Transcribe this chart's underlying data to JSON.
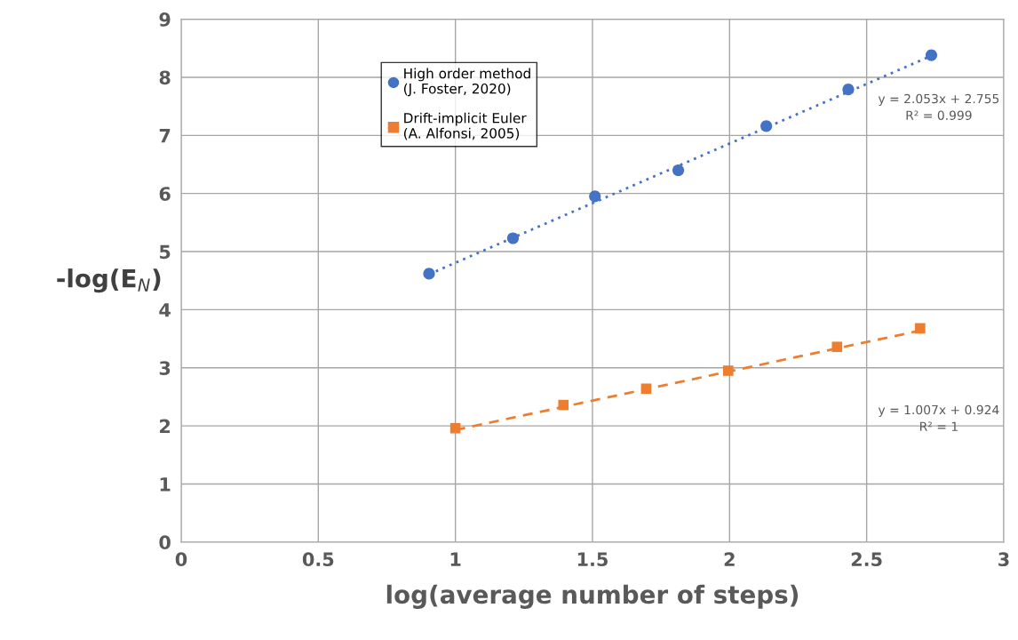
{
  "chart_data": {
    "type": "scatter",
    "xlabel": "log(average number of steps)",
    "ylabel": "-log(E$_{N}$)",
    "xlim": [
      0,
      3
    ],
    "xticks": [
      0,
      0.5,
      1,
      1.5,
      2,
      2.5,
      3
    ],
    "ylim": [
      0,
      9
    ],
    "yticks": [
      0,
      1,
      2,
      3,
      4,
      5,
      6,
      7,
      8,
      9
    ],
    "grid": true,
    "legend": "top left",
    "series": [
      {
        "name": "High order method\n(J. Foster, 2020)",
        "color": "#4472c4",
        "marker": "circle",
        "x": [
          0.904,
          1.21,
          1.509,
          1.813,
          2.134,
          2.433,
          2.736
        ],
        "values": [
          4.62,
          5.23,
          5.95,
          6.4,
          7.16,
          7.79,
          8.38
        ]
      },
      {
        "name": "Drift-implicit Euler\n(A. Alfonsi, 2005)",
        "color": "#ed7d31",
        "marker": "square",
        "x": [
          1.0,
          1.394,
          1.696,
          1.995,
          2.392,
          2.695
        ],
        "values": [
          1.96,
          2.36,
          2.64,
          2.95,
          3.36,
          3.68
        ]
      },
      {
        "type": "line",
        "color": "#4472c4",
        "line_style": "dotted",
        "x": [
          0.904,
          2.736
        ],
        "values": [
          4.61,
          8.37
        ]
      },
      {
        "type": "line",
        "color": "#ed7d31",
        "line_style": "dashed",
        "x": [
          1.0,
          2.695
        ],
        "values": [
          1.93,
          3.64
        ]
      }
    ],
    "annotations": [
      "y = 2.053x + 2.755\nR² = 0.999",
      "y = 1.007x + 0.924\nR² = 1"
    ]
  }
}
